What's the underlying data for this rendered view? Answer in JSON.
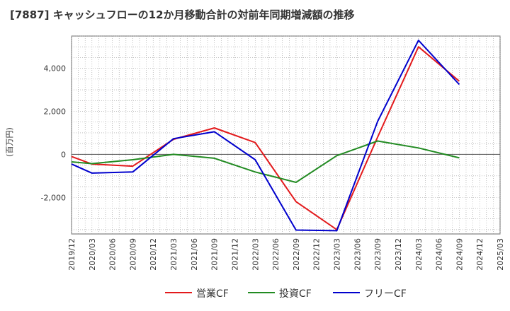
{
  "chart_data": {
    "type": "line",
    "title": "[7887]  キャッシュフローの12か月移動合計の対前年同期増減額の推移",
    "ylabel": "(百万円)",
    "xlabel": "",
    "ylim": [
      -3700,
      5500
    ],
    "yticks": [
      -2000,
      0,
      2000,
      4000
    ],
    "ytick_labels": [
      "-2,000",
      "0",
      "2,000",
      "4,000"
    ],
    "xticks": [
      "2019/12",
      "2020/03",
      "2020/06",
      "2020/09",
      "2020/12",
      "2021/03",
      "2021/06",
      "2021/09",
      "2021/12",
      "2022/03",
      "2022/06",
      "2022/09",
      "2022/12",
      "2023/03",
      "2023/06",
      "2023/09",
      "2023/12",
      "2024/03",
      "2024/06",
      "2024/09",
      "2024/12",
      "2025/03"
    ],
    "grid": true,
    "legend_position": "bottom",
    "series": [
      {
        "name": "営業CF",
        "color": "#e31a1c",
        "points": [
          {
            "x": "2019/12",
            "y": -100
          },
          {
            "x": "2020/03",
            "y": -450
          },
          {
            "x": "2020/09",
            "y": -550
          },
          {
            "x": "2021/03",
            "y": 700
          },
          {
            "x": "2021/09",
            "y": 1230
          },
          {
            "x": "2022/03",
            "y": 550
          },
          {
            "x": "2022/09",
            "y": -2200
          },
          {
            "x": "2023/03",
            "y": -3500
          },
          {
            "x": "2023/09",
            "y": 800
          },
          {
            "x": "2024/03",
            "y": 5000
          },
          {
            "x": "2024/09",
            "y": 3400
          }
        ]
      },
      {
        "name": "投資CF",
        "color": "#228b22",
        "points": [
          {
            "x": "2019/12",
            "y": -350
          },
          {
            "x": "2020/03",
            "y": -430
          },
          {
            "x": "2020/09",
            "y": -250
          },
          {
            "x": "2021/03",
            "y": 0
          },
          {
            "x": "2021/09",
            "y": -180
          },
          {
            "x": "2022/03",
            "y": -820
          },
          {
            "x": "2022/09",
            "y": -1300
          },
          {
            "x": "2023/03",
            "y": -60
          },
          {
            "x": "2023/09",
            "y": 620
          },
          {
            "x": "2024/03",
            "y": 300
          },
          {
            "x": "2024/09",
            "y": -160
          }
        ]
      },
      {
        "name": "フリーCF",
        "color": "#0000cd",
        "points": [
          {
            "x": "2019/12",
            "y": -450
          },
          {
            "x": "2020/03",
            "y": -870
          },
          {
            "x": "2020/09",
            "y": -820
          },
          {
            "x": "2021/03",
            "y": 730
          },
          {
            "x": "2021/09",
            "y": 1050
          },
          {
            "x": "2022/03",
            "y": -250
          },
          {
            "x": "2022/09",
            "y": -3520
          },
          {
            "x": "2023/03",
            "y": -3550
          },
          {
            "x": "2023/09",
            "y": 1530
          },
          {
            "x": "2024/03",
            "y": 5300
          },
          {
            "x": "2024/09",
            "y": 3250
          }
        ]
      }
    ]
  }
}
